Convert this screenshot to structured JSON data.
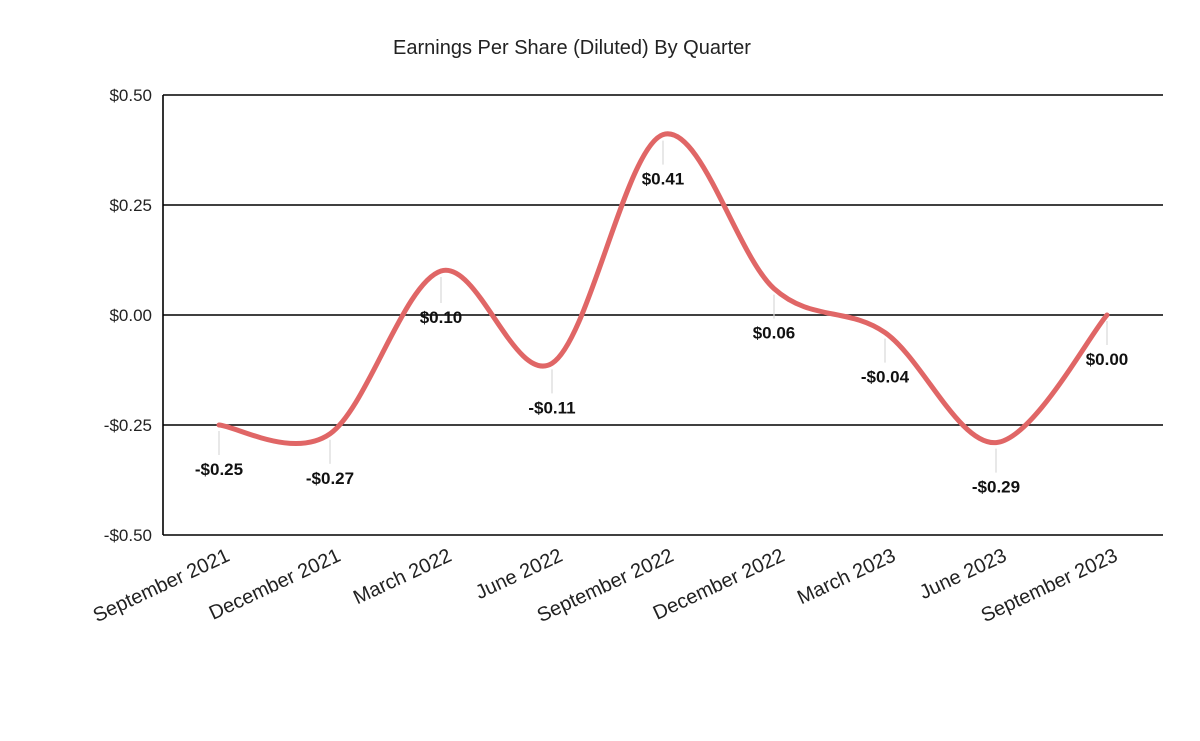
{
  "chart_data": {
    "type": "line",
    "title": "Earnings Per Share (Diluted) By Quarter",
    "xlabel": "",
    "ylabel": "",
    "categories": [
      "September 2021",
      "December 2021",
      "March 2022",
      "June 2022",
      "September 2022",
      "December 2022",
      "March 2023",
      "June 2023",
      "September 2023"
    ],
    "series": [
      {
        "name": "",
        "values": [
          -0.25,
          -0.27,
          0.1,
          -0.11,
          0.41,
          0.06,
          -0.04,
          -0.29,
          0.0
        ],
        "labels": [
          "-$0.25",
          "-$0.27",
          "$0.10",
          "-$0.11",
          "$0.41",
          "$0.06",
          "-$0.04",
          "-$0.29",
          "$0.00"
        ],
        "color": "#e06666"
      }
    ],
    "ylim": [
      -0.5,
      0.5
    ],
    "yticks": [
      0.5,
      0.25,
      0.0,
      -0.25,
      -0.5
    ],
    "ytick_labels": [
      "$0.50",
      "$0.25",
      "$0.00",
      "-$0.25",
      "-$0.50"
    ],
    "grid": true,
    "smooth": true,
    "legend": "none"
  }
}
